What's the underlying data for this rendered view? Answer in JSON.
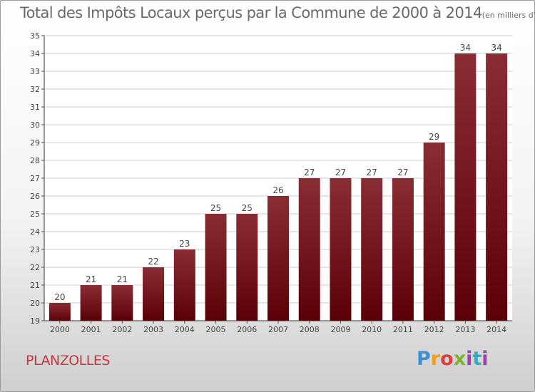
{
  "title": "Total des Impôts Locaux perçus par la Commune de 2000 à 2014",
  "unit_note": "(en milliers d'€)",
  "commune": "PLANZOLLES",
  "logo_text": "Proxiti",
  "colors": {
    "bar_top": "#8a2c33",
    "bar_bottom": "#5c0008",
    "commune_text": "#c8373c",
    "grid": "#cccccc"
  },
  "chart_data": {
    "type": "bar",
    "title": "Total des Impôts Locaux perçus par la Commune de 2000 à 2014",
    "xlabel": "",
    "ylabel": "",
    "categories": [
      "2000",
      "2001",
      "2002",
      "2003",
      "2004",
      "2005",
      "2006",
      "2007",
      "2008",
      "2009",
      "2010",
      "2011",
      "2012",
      "2013",
      "2014"
    ],
    "values": [
      20,
      21,
      21,
      22,
      23,
      25,
      25,
      26,
      27,
      27,
      27,
      27,
      29,
      34,
      34
    ],
    "ylim": [
      19,
      35
    ],
    "yticks": [
      19,
      20,
      21,
      22,
      23,
      24,
      25,
      26,
      27,
      28,
      29,
      30,
      31,
      32,
      33,
      34,
      35
    ],
    "grid": true
  }
}
